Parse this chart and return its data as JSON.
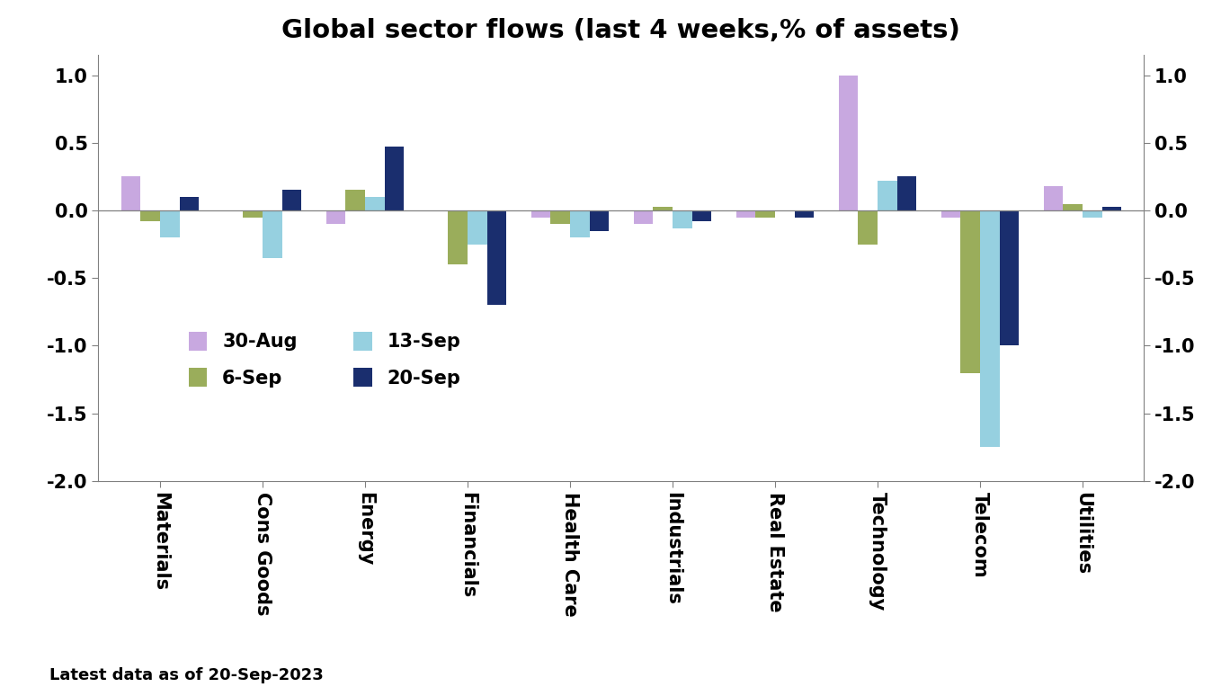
{
  "title": "Global sector flows (last 4 weeks,% of assets)",
  "footnote": "Latest data as of 20-Sep-2023",
  "categories": [
    "Materials",
    "Cons Goods",
    "Energy",
    "Financials",
    "Health Care",
    "Industrials",
    "Real Estate",
    "Technology",
    "Telecom",
    "Utilities"
  ],
  "series": [
    {
      "label": "30-Aug",
      "color": "#c8a8e0",
      "values": [
        0.25,
        0.0,
        -0.1,
        0.0,
        -0.05,
        -0.1,
        -0.05,
        1.0,
        -0.05,
        0.18
      ]
    },
    {
      "label": "6-Sep",
      "color": "#9aad5b",
      "values": [
        -0.08,
        -0.05,
        0.15,
        -0.4,
        -0.1,
        0.03,
        -0.05,
        -0.25,
        -1.2,
        0.05
      ]
    },
    {
      "label": "13-Sep",
      "color": "#96d0e0",
      "values": [
        -0.2,
        -0.35,
        0.1,
        -0.25,
        -0.2,
        -0.13,
        0.0,
        0.22,
        -1.75,
        -0.05
      ]
    },
    {
      "label": "20-Sep",
      "color": "#1a2e6e",
      "values": [
        0.1,
        0.15,
        0.47,
        -0.7,
        -0.15,
        -0.08,
        -0.05,
        0.25,
        -1.0,
        0.03
      ]
    }
  ],
  "ylim": [
    -2.0,
    1.15
  ],
  "yticks": [
    -2.0,
    -1.5,
    -1.0,
    -0.5,
    0.0,
    0.5,
    1.0
  ],
  "bar_width": 0.19,
  "figsize": [
    13.68,
    7.64
  ],
  "dpi": 100,
  "background_color": "#ffffff",
  "title_fontsize": 21,
  "tick_fontsize": 15,
  "legend_fontsize": 15,
  "footnote_fontsize": 13
}
